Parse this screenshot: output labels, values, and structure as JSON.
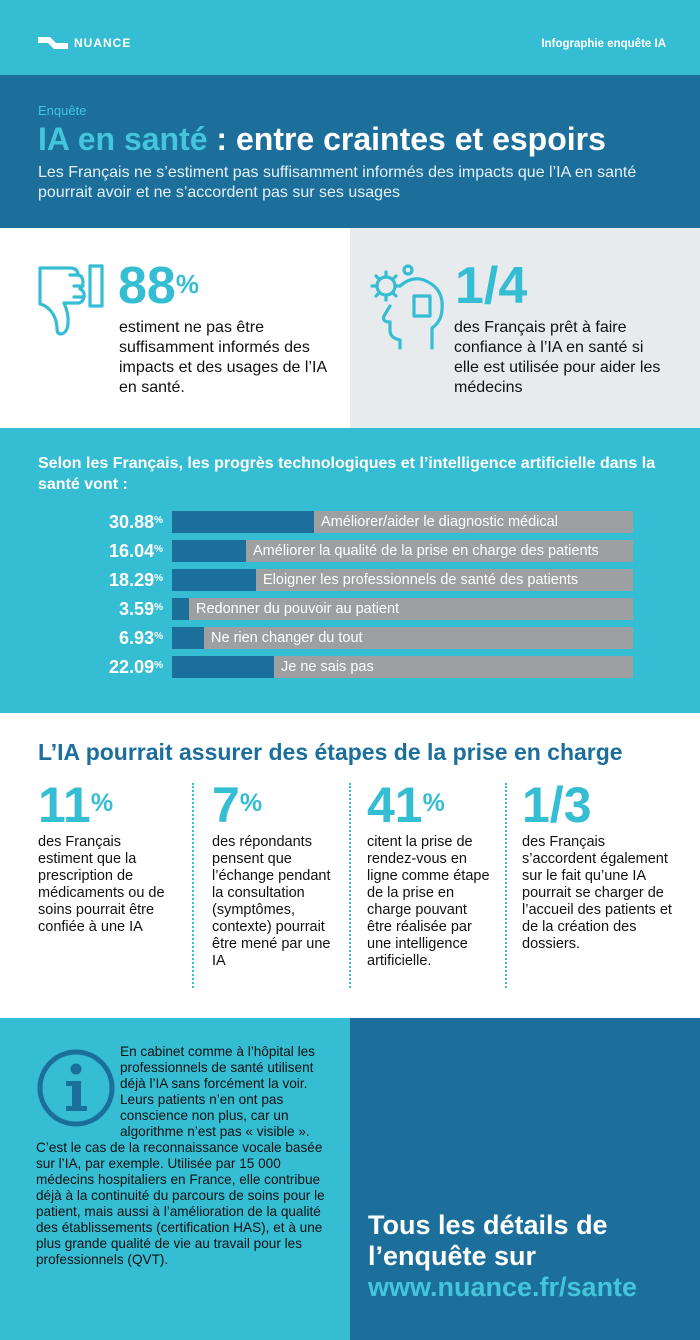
{
  "header": {
    "brand": "NUANCE",
    "right_label": "Infographie enquête IA"
  },
  "hero": {
    "eyebrow": "Enquête",
    "title_part1": "IA en santé",
    "title_part2": " : entre craintes et espoirs",
    "subtitle": "Les Français ne s’estiment pas suffisamment informés des impacts que l’IA en santé pourrait avoir et ne s’accordent pas sur ses usages"
  },
  "stats": [
    {
      "value": "88",
      "unit": "%",
      "text": "estiment ne pas être suffisamment informés des impacts et des usages de l’IA en santé.",
      "icon": "thumbs-down-icon"
    },
    {
      "value": "1/4",
      "unit": "",
      "text": "des Français prêt à faire confiance à l’IA en santé si elle est utilisée pour aider les médecins",
      "icon": "head-gears-icon"
    }
  ],
  "chart_data": {
    "type": "bar",
    "orientation": "horizontal",
    "title": "Selon les Français, les progrès technologiques et l’intelligence artificielle dans la santé vont :",
    "unit": "%",
    "xlim": [
      0,
      100
    ],
    "categories": [
      "Améliorer/aider le diagnostic médical",
      "Améliorer la qualité de la prise en charge des patients",
      "Eloigner les professionnels de santé des patients",
      "Redonner du pouvoir au patient",
      "Ne rien changer du tout",
      "Je ne sais pas"
    ],
    "values": [
      30.88,
      16.04,
      18.29,
      3.59,
      6.93,
      22.09
    ],
    "value_labels": [
      "30.88",
      "16.04",
      "18.29",
      "3.59",
      "6.93",
      "22.09"
    ],
    "colors": {
      "fill": "#1c6e9b",
      "track": "#9e9fa1"
    }
  },
  "steps": {
    "title": "L’IA pourrait assurer des étapes de la prise en charge",
    "items": [
      {
        "value": "11",
        "unit": "%",
        "text": "des Français estiment que la prescription de médicaments ou de soins pourrait être confiée à une IA"
      },
      {
        "value": "7",
        "unit": "%",
        "text": "des répondants pensent que l’échange pendant la consultation (symptômes, contexte) pourrait être mené par une IA"
      },
      {
        "value": "41",
        "unit": "%",
        "text": "citent la prise de rendez-vous en ligne comme étape de la prise en charge pouvant être réalisée par une intelligence artificielle."
      },
      {
        "value": "1/3",
        "unit": "",
        "text": "des Français s’accordent également sur le fait qu’une IA pourrait se charger de l’accueil des patients et de la création des dossiers."
      }
    ]
  },
  "info": {
    "icon": "info-icon",
    "text": "En cabinet comme à l’hôpital les professionnels de santé utilisent déjà l’IA sans forcément la voir. Leurs patients n’en ont pas conscience non plus, car un algorithme n’est pas « visible ». C’est le cas de la reconnaissance vocale basée sur l’IA, par exemple. Utilisée par 15 000 médecins hospitaliers en France, elle contribue déjà à la continuité du parcours de soins pour le patient, mais aussi à l’amélioration de la qualité des établissements (certification HAS), et à une plus grande qualité de vie au travail pour les professionnels (QVT)."
  },
  "cta": {
    "line1": "Tous les détails de",
    "line2": "l’enquête sur",
    "url": "www.nuance.fr/sante"
  },
  "colors": {
    "cyan": "#35bdd3",
    "navy": "#1c6e9b",
    "light_gray": "#e8ebed",
    "bar_track": "#9e9fa1"
  }
}
